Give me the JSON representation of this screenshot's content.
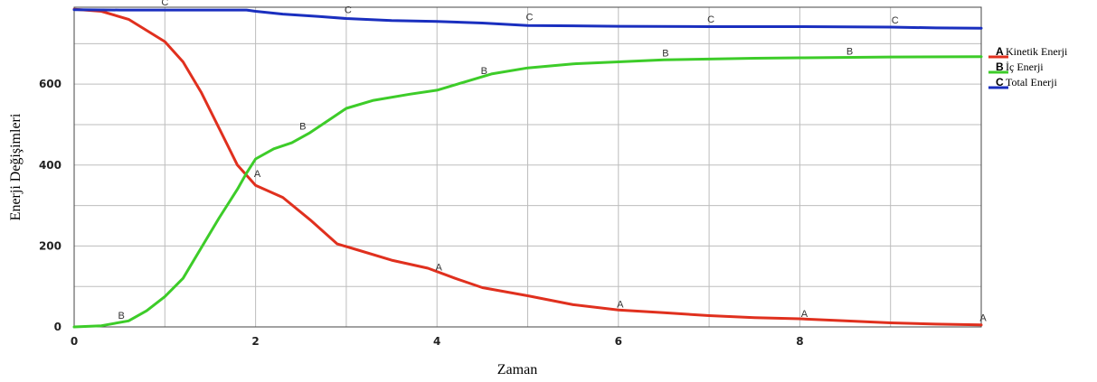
{
  "chart_data": {
    "type": "line",
    "title": "",
    "xlabel": "Zaman",
    "ylabel": "Enerji Değişimleri",
    "xlim": [
      0,
      10
    ],
    "ylim": [
      0,
      790
    ],
    "x_ticks": [
      0,
      2,
      4,
      6,
      8
    ],
    "y_ticks": [
      0,
      200,
      400,
      600
    ],
    "grid": true,
    "legend_position": "right",
    "series": [
      {
        "letter": "A",
        "name": "Kinetik Enerji",
        "color": "#e0301e",
        "x": [
          0,
          0.3,
          0.6,
          1.0,
          1.2,
          1.4,
          1.6,
          1.8,
          2.0,
          2.3,
          2.6,
          2.9,
          3.1,
          3.5,
          3.9,
          4.2,
          4.5,
          5.0,
          5.5,
          6.0,
          6.5,
          7.0,
          7.5,
          8.0,
          8.5,
          9.0,
          9.5,
          10.0
        ],
        "y": [
          785,
          780,
          760,
          705,
          655,
          580,
          490,
          400,
          350,
          320,
          265,
          205,
          192,
          165,
          145,
          120,
          97,
          77,
          55,
          42,
          35,
          28,
          23,
          20,
          15,
          10,
          7,
          5
        ],
        "markers": [
          {
            "x": 2.02,
            "y": 370
          },
          {
            "x": 4.02,
            "y": 140
          },
          {
            "x": 6.02,
            "y": 48
          },
          {
            "x": 8.05,
            "y": 25
          },
          {
            "x": 10.02,
            "y": 15
          }
        ]
      },
      {
        "letter": "B",
        "name": "İç Enerji",
        "color": "#3dcc29",
        "x": [
          0,
          0.3,
          0.6,
          0.8,
          1.0,
          1.2,
          1.4,
          1.6,
          1.8,
          1.9,
          2.0,
          2.2,
          2.4,
          2.6,
          2.8,
          3.0,
          3.3,
          3.7,
          4.0,
          4.3,
          4.6,
          5.0,
          5.5,
          6.0,
          6.5,
          7.0,
          7.5,
          8.0,
          9.0,
          10.0
        ],
        "y": [
          0,
          3,
          15,
          40,
          75,
          120,
          195,
          270,
          340,
          380,
          415,
          440,
          455,
          480,
          510,
          540,
          560,
          575,
          585,
          605,
          625,
          640,
          650,
          655,
          660,
          662,
          664,
          665,
          667,
          668
        ],
        "markers": [
          {
            "x": 0.52,
            "y": 20
          },
          {
            "x": 2.52,
            "y": 488
          },
          {
            "x": 4.52,
            "y": 625
          },
          {
            "x": 6.52,
            "y": 668
          },
          {
            "x": 8.55,
            "y": 673
          }
        ]
      },
      {
        "letter": "C",
        "name": "Total Enerji",
        "color": "#1a2fbf",
        "x": [
          0,
          0.5,
          1.0,
          1.5,
          1.9,
          2.0,
          2.3,
          2.7,
          3.0,
          3.5,
          4.0,
          4.5,
          5.0,
          6.0,
          7.0,
          8.0,
          9.0,
          9.5,
          10.0
        ],
        "y": [
          784,
          783,
          783,
          783,
          783,
          780,
          773,
          767,
          762,
          757,
          755,
          751,
          745,
          743,
          742,
          742,
          741,
          739,
          738
        ],
        "markers": [
          {
            "x": 1.0,
            "y": 795
          },
          {
            "x": 3.02,
            "y": 775
          },
          {
            "x": 5.02,
            "y": 758
          },
          {
            "x": 7.02,
            "y": 752
          },
          {
            "x": 9.05,
            "y": 750
          }
        ]
      }
    ]
  }
}
